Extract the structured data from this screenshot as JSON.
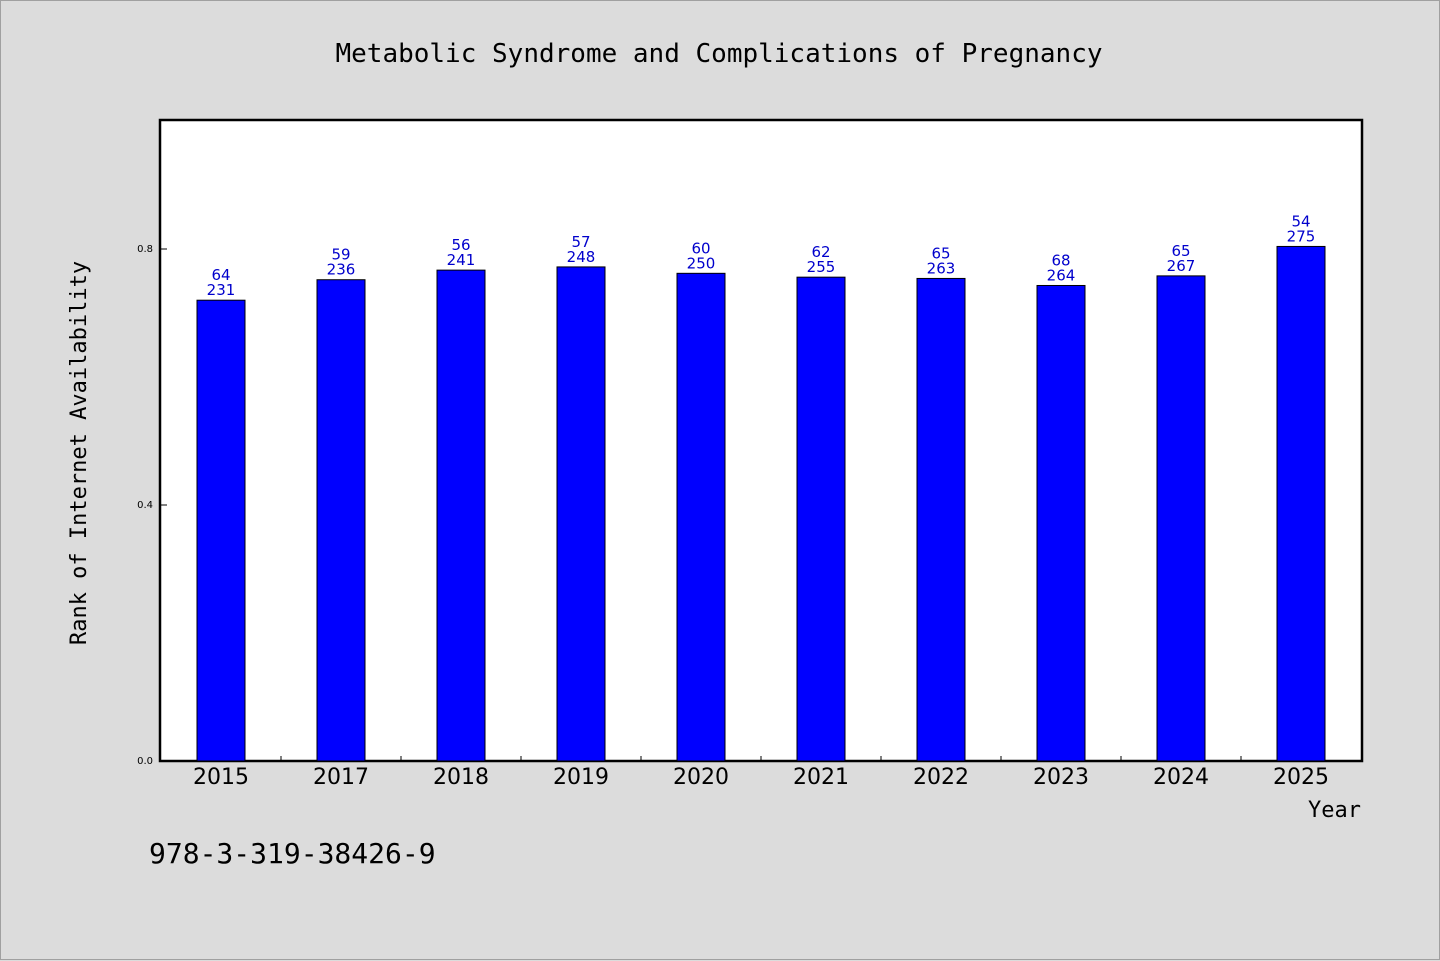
{
  "chart_data": {
    "type": "bar",
    "title": "Metabolic Syndrome and Complications of Pregnancy",
    "xlabel": "Year",
    "ylabel": "Rank of Internet Availability",
    "categories": [
      "2015",
      "2017",
      "2018",
      "2019",
      "2020",
      "2021",
      "2022",
      "2023",
      "2024",
      "2025"
    ],
    "values": [
      0.72,
      0.752,
      0.767,
      0.772,
      0.762,
      0.756,
      0.754,
      0.743,
      0.758,
      0.804
    ],
    "label_top": [
      "64",
      "59",
      "56",
      "57",
      "60",
      "62",
      "65",
      "68",
      "65",
      "54"
    ],
    "label_bottom": [
      "231",
      "236",
      "241",
      "248",
      "250",
      "255",
      "263",
      "264",
      "267",
      "275"
    ],
    "ylim": [
      0,
      1.0
    ],
    "yticks": [
      0.0,
      0.4,
      0.8
    ],
    "ytick_labels": [
      "0.0",
      "0.4",
      "0.8"
    ],
    "grid": false,
    "bar_color": "#0000ff",
    "label_color": "#0000cc"
  },
  "footer": {
    "isbn": "978-3-319-38426-9"
  }
}
